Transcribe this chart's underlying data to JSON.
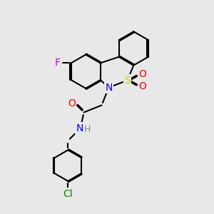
{
  "bg_color": "#e8e8e8",
  "bond_color": "#000000",
  "bond_width": 1.5,
  "atoms": {
    "F": {
      "color": "#cc00cc",
      "fontsize": 10
    },
    "N": {
      "color": "#0000ff",
      "fontsize": 10
    },
    "S": {
      "color": "#cccc00",
      "fontsize": 10
    },
    "O": {
      "color": "#ff0000",
      "fontsize": 10
    },
    "Cl": {
      "color": "#008800",
      "fontsize": 10
    },
    "H": {
      "color": "#888888",
      "fontsize": 9
    }
  },
  "dbo": 0.055
}
